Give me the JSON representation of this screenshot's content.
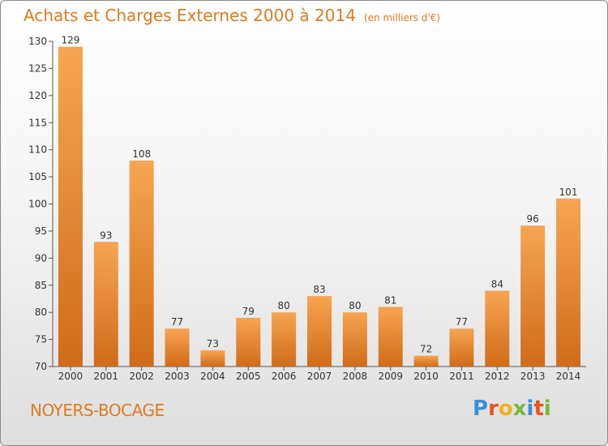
{
  "chart_data": {
    "type": "bar",
    "title": "Achats et Charges Externes 2000 à 2014",
    "subtitle": "(en milliers d'€)",
    "categories": [
      "2000",
      "2001",
      "2002",
      "2003",
      "2004",
      "2005",
      "2006",
      "2007",
      "2008",
      "2009",
      "2010",
      "2011",
      "2012",
      "2013",
      "2014"
    ],
    "values": [
      129,
      93,
      108,
      77,
      73,
      79,
      80,
      83,
      80,
      81,
      72,
      77,
      84,
      96,
      101
    ],
    "ylim": [
      70,
      130
    ],
    "yticks": [
      70,
      75,
      80,
      85,
      90,
      95,
      100,
      105,
      110,
      115,
      120,
      125,
      130
    ],
    "grid": false,
    "bar_color": "#f0913a"
  },
  "footer": {
    "commune": "NOYERS-BOCAGE",
    "logo": "Proxiti",
    "logo_colors": [
      "#3a8fd6",
      "#e8541e",
      "#f2b01e",
      "#7cb83a",
      "#3a8fd6",
      "#e8541e",
      "#7cb83a"
    ]
  },
  "colors": {
    "accent": "#e07a1f",
    "bar_top": "#f7a552",
    "bar_bottom": "#d06b18"
  }
}
